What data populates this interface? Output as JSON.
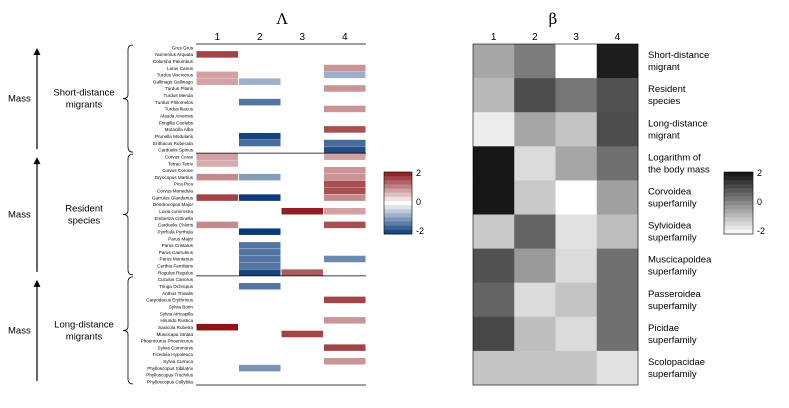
{
  "chart_data": [
    {
      "type": "heatmap",
      "title": "Λ",
      "columns": [
        "1",
        "2",
        "3",
        "4"
      ],
      "species": [
        "Grus Grus",
        "Numenius Arquata",
        "Columba Palumbus",
        "Larus Canus",
        "Turdus Viscivorus",
        "Gallinago Gallinago",
        "Turdus Pilaris",
        "Turdus Merula",
        "Turdus Philomelos",
        "Turdus Iliacus",
        "Alauda Arvensis",
        "Fringilla Coelebs",
        "Motacilla Alba",
        "Prunella Modularis",
        "Erithacus Rubecula",
        "Carduelis Spinus",
        "Corvus Corax",
        "Tetrao Tetrix",
        "Corvus Corone",
        "Dryocopus Martius",
        "Pica Pica",
        "Corvus Monedula",
        "Garrulus Glandarius",
        "Dendrocopos Major",
        "Loxia curvirostra",
        "Emberiza Citrinella",
        "Carduelis Chloris",
        "Pyrrhula Pyrrhula",
        "Parus Major",
        "Parus Cristatus",
        "Parus Caeruleus",
        "Parus Montanus",
        "Certhia Familiaris",
        "Regulus Regulus",
        "Cuculus Canorus",
        "Tringa Ochropus",
        "Anthus Trivialis",
        "Carpodacus Erythrinus",
        "Sylvia Borin",
        "Sylvia Atricapilla",
        "Hirundo Rustica",
        "Saxicola Rubetra",
        "Muscicapa Striata",
        "Phoenicurus Phoenicurus",
        "Sylvia Communis",
        "Ficedula Hypoleuca",
        "Sylvia Curruca",
        "Phylloscopus Sibilatrix",
        "Phylloscopus Trochilus",
        "Phylloscopus Collybita"
      ],
      "cells": [
        {
          "row": 1,
          "col": 1,
          "value": 1.6
        },
        {
          "row": 3,
          "col": 4,
          "value": 0.9
        },
        {
          "row": 4,
          "col": 1,
          "value": 0.8
        },
        {
          "row": 4,
          "col": 4,
          "value": -0.8
        },
        {
          "row": 5,
          "col": 1,
          "value": 0.8
        },
        {
          "row": 5,
          "col": 2,
          "value": -0.8
        },
        {
          "row": 6,
          "col": 4,
          "value": 0.9
        },
        {
          "row": 8,
          "col": 2,
          "value": -1.4
        },
        {
          "row": 9,
          "col": 4,
          "value": 0.9
        },
        {
          "row": 12,
          "col": 4,
          "value": 1.5
        },
        {
          "row": 13,
          "col": 2,
          "value": -1.9
        },
        {
          "row": 14,
          "col": 2,
          "value": -1.5
        },
        {
          "row": 14,
          "col": 4,
          "value": -1.5
        },
        {
          "row": 15,
          "col": 4,
          "value": -1.8
        },
        {
          "row": 16,
          "col": 1,
          "value": 0.8
        },
        {
          "row": 16,
          "col": 4,
          "value": 0.8
        },
        {
          "row": 17,
          "col": 1,
          "value": 0.7
        },
        {
          "row": 18,
          "col": 4,
          "value": 0.9
        },
        {
          "row": 19,
          "col": 1,
          "value": 1.0
        },
        {
          "row": 19,
          "col": 2,
          "value": -1.0
        },
        {
          "row": 19,
          "col": 4,
          "value": 0.9
        },
        {
          "row": 20,
          "col": 4,
          "value": 1.5
        },
        {
          "row": 21,
          "col": 4,
          "value": 1.5
        },
        {
          "row": 22,
          "col": 1,
          "value": 1.6
        },
        {
          "row": 22,
          "col": 2,
          "value": -2.0
        },
        {
          "row": 22,
          "col": 4,
          "value": 1.0
        },
        {
          "row": 24,
          "col": 3,
          "value": 1.9
        },
        {
          "row": 24,
          "col": 4,
          "value": 0.8
        },
        {
          "row": 26,
          "col": 1,
          "value": 1.0
        },
        {
          "row": 26,
          "col": 4,
          "value": 1.5
        },
        {
          "row": 27,
          "col": 2,
          "value": -2.0
        },
        {
          "row": 29,
          "col": 2,
          "value": -1.4
        },
        {
          "row": 30,
          "col": 2,
          "value": -1.4
        },
        {
          "row": 31,
          "col": 2,
          "value": -1.4
        },
        {
          "row": 31,
          "col": 4,
          "value": -1.2
        },
        {
          "row": 32,
          "col": 2,
          "value": -1.4
        },
        {
          "row": 33,
          "col": 2,
          "value": -1.9
        },
        {
          "row": 33,
          "col": 3,
          "value": 1.4
        },
        {
          "row": 35,
          "col": 2,
          "value": -1.4
        },
        {
          "row": 37,
          "col": 4,
          "value": 1.6
        },
        {
          "row": 40,
          "col": 4,
          "value": 0.9
        },
        {
          "row": 41,
          "col": 1,
          "value": 2.0
        },
        {
          "row": 42,
          "col": 3,
          "value": 1.6
        },
        {
          "row": 44,
          "col": 4,
          "value": 1.6
        },
        {
          "row": 46,
          "col": 4,
          "value": 0.9
        },
        {
          "row": 47,
          "col": 2,
          "value": -1.1
        }
      ],
      "groups": [
        {
          "mass": "Mass",
          "label": "Short-distance\nmigrants",
          "rows": [
            0,
            15
          ]
        },
        {
          "mass": "Mass",
          "label": "Resident\nspecies",
          "rows": [
            16,
            33
          ]
        },
        {
          "mass": "Mass",
          "label": "Long-distance\nmigrants",
          "rows": [
            34,
            49
          ]
        }
      ],
      "colorbar": {
        "ticks": [
          "2",
          "0",
          "-2"
        ],
        "range": [
          -2,
          2
        ],
        "colors": {
          "negative": "#0a3a78",
          "positive": "#8b1418",
          "mid": "#ffffff"
        }
      }
    },
    {
      "type": "heatmap",
      "title": "β",
      "columns": [
        "1",
        "2",
        "3",
        "4"
      ],
      "rows": [
        "Short-distance\nmigrant",
        "Resident\nspecies",
        "Long-distance\nmigrant",
        "Logarithm of\nthe body mass",
        "Corvoidea\nsuperfamily",
        "Sylvioidea\nsuperfamily",
        "Muscicapoidea\nsuperfamily",
        "Passeroidea\nsuperfamily",
        "Picidae\nsuperfamily",
        "Scolopacidae\nsuperfamily"
      ],
      "values": [
        [
          -0.5,
          0.2,
          -2.0,
          1.8
        ],
        [
          -0.8,
          1.0,
          0.3,
          0.9
        ],
        [
          -1.7,
          -0.5,
          -1.0,
          1.0
        ],
        [
          1.9,
          -1.4,
          -0.5,
          0.4
        ],
        [
          1.9,
          -1.1,
          -2.0,
          -0.4
        ],
        [
          -1.1,
          0.6,
          -1.5,
          -0.9
        ],
        [
          0.9,
          -0.3,
          -1.4,
          0.4
        ],
        [
          0.6,
          -1.4,
          -1.0,
          0.4
        ],
        [
          1.1,
          -0.9,
          -1.4,
          0.4
        ],
        [
          -1.0,
          -1.0,
          -1.0,
          -1.5
        ]
      ],
      "colorbar": {
        "ticks": [
          "2",
          "0",
          "-2"
        ],
        "range": [
          -2,
          2
        ],
        "colors": {
          "high": "#111111",
          "low": "#ffffff"
        }
      }
    }
  ]
}
